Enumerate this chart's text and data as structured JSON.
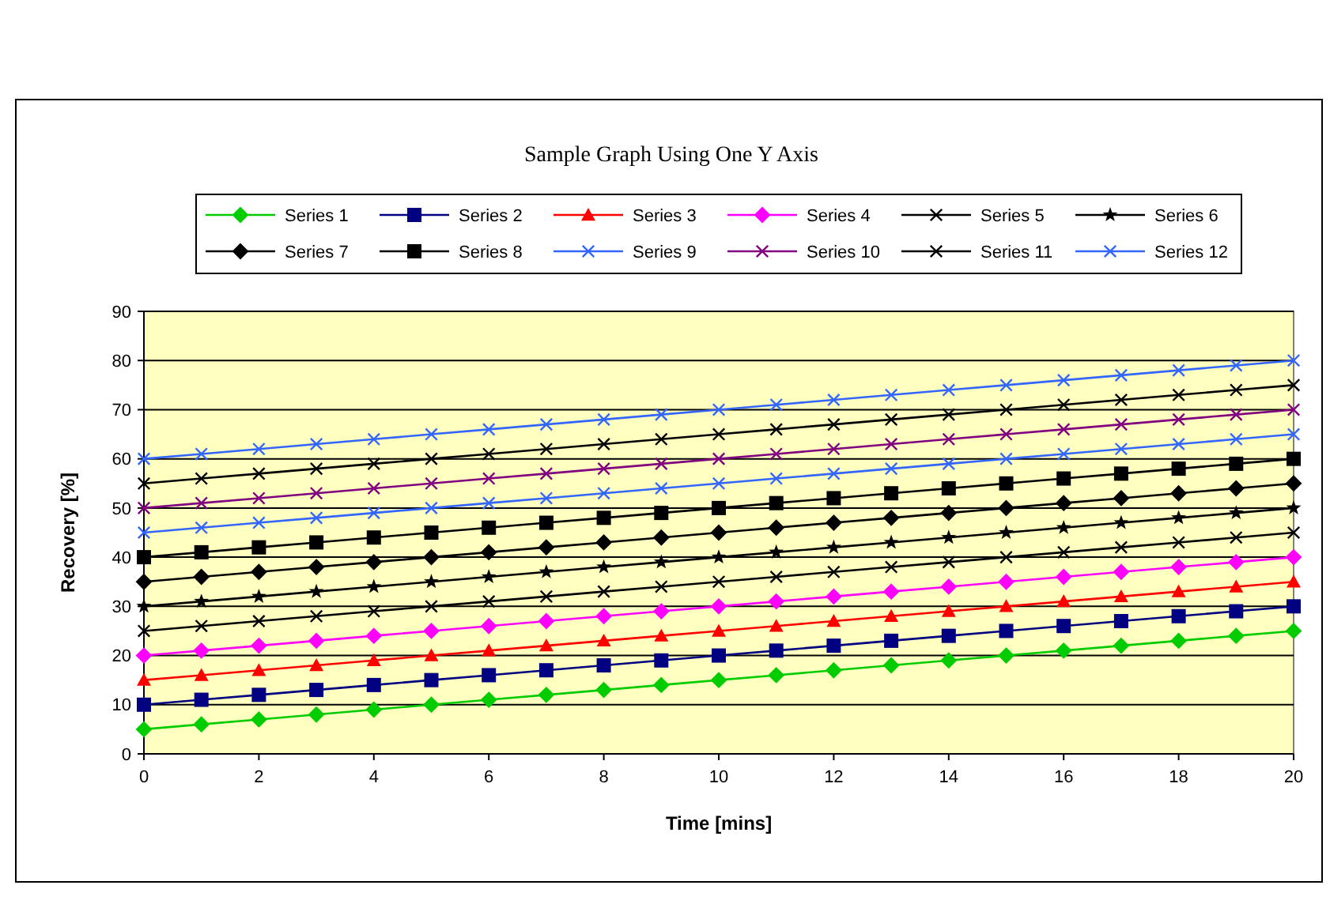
{
  "chart_data": {
    "type": "line",
    "title": "Sample Graph Using One Y Axis",
    "xlabel": "Time [mins]",
    "ylabel": "Recovery [%]",
    "x": [
      0,
      1,
      2,
      3,
      4,
      5,
      6,
      7,
      8,
      9,
      10,
      11,
      12,
      13,
      14,
      15,
      16,
      17,
      18,
      19,
      20
    ],
    "xlim": [
      0,
      20
    ],
    "xticks": [
      0,
      2,
      4,
      6,
      8,
      10,
      12,
      14,
      16,
      18,
      20
    ],
    "ylim": [
      0,
      90
    ],
    "yticks": [
      0,
      10,
      20,
      30,
      40,
      50,
      60,
      70,
      80,
      90
    ],
    "grid": "y",
    "legend": "top",
    "series": [
      {
        "name": "Series 1",
        "color": "#00cc00",
        "marker": "diamond",
        "values": [
          5,
          6,
          7,
          8,
          9,
          10,
          11,
          12,
          13,
          14,
          15,
          16,
          17,
          18,
          19,
          20,
          21,
          22,
          23,
          24,
          25
        ]
      },
      {
        "name": "Series 2",
        "color": "#000080",
        "marker": "square",
        "values": [
          10,
          11,
          12,
          13,
          14,
          15,
          16,
          17,
          18,
          19,
          20,
          21,
          22,
          23,
          24,
          25,
          26,
          27,
          28,
          29,
          30
        ]
      },
      {
        "name": "Series 3",
        "color": "#ff0000",
        "marker": "triangle",
        "values": [
          15,
          16,
          17,
          18,
          19,
          20,
          21,
          22,
          23,
          24,
          25,
          26,
          27,
          28,
          29,
          30,
          31,
          32,
          33,
          34,
          35
        ]
      },
      {
        "name": "Series 4",
        "color": "#ff00ff",
        "marker": "diamond",
        "values": [
          20,
          21,
          22,
          23,
          24,
          25,
          26,
          27,
          28,
          29,
          30,
          31,
          32,
          33,
          34,
          35,
          36,
          37,
          38,
          39,
          40
        ]
      },
      {
        "name": "Series 5",
        "color": "#000000",
        "marker": "cross",
        "values": [
          25,
          26,
          27,
          28,
          29,
          30,
          31,
          32,
          33,
          34,
          35,
          36,
          37,
          38,
          39,
          40,
          41,
          42,
          43,
          44,
          45
        ]
      },
      {
        "name": "Series 6",
        "color": "#000000",
        "marker": "star",
        "values": [
          30,
          31,
          32,
          33,
          34,
          35,
          36,
          37,
          38,
          39,
          40,
          41,
          42,
          43,
          44,
          45,
          46,
          47,
          48,
          49,
          50
        ]
      },
      {
        "name": "Series 7",
        "color": "#000000",
        "marker": "diamond",
        "values": [
          35,
          36,
          37,
          38,
          39,
          40,
          41,
          42,
          43,
          44,
          45,
          46,
          47,
          48,
          49,
          50,
          51,
          52,
          53,
          54,
          55
        ]
      },
      {
        "name": "Series 8",
        "color": "#000000",
        "marker": "square",
        "values": [
          40,
          41,
          42,
          43,
          44,
          45,
          46,
          47,
          48,
          49,
          50,
          51,
          52,
          53,
          54,
          55,
          56,
          57,
          58,
          59,
          60
        ]
      },
      {
        "name": "Series 9",
        "color": "#3366ff",
        "marker": "cross",
        "values": [
          45,
          46,
          47,
          48,
          49,
          50,
          51,
          52,
          53,
          54,
          55,
          56,
          57,
          58,
          59,
          60,
          61,
          62,
          63,
          64,
          65
        ]
      },
      {
        "name": "Series 10",
        "color": "#800080",
        "marker": "cross",
        "values": [
          50,
          51,
          52,
          53,
          54,
          55,
          56,
          57,
          58,
          59,
          60,
          61,
          62,
          63,
          64,
          65,
          66,
          67,
          68,
          69,
          70
        ]
      },
      {
        "name": "Series 11",
        "color": "#000000",
        "marker": "cross",
        "values": [
          55,
          56,
          57,
          58,
          59,
          60,
          61,
          62,
          63,
          64,
          65,
          66,
          67,
          68,
          69,
          70,
          71,
          72,
          73,
          74,
          75
        ]
      },
      {
        "name": "Series 12",
        "color": "#3366ff",
        "marker": "cross",
        "values": [
          60,
          61,
          62,
          63,
          64,
          65,
          66,
          67,
          68,
          69,
          70,
          71,
          72,
          73,
          74,
          75,
          76,
          77,
          78,
          79,
          80
        ]
      }
    ]
  }
}
